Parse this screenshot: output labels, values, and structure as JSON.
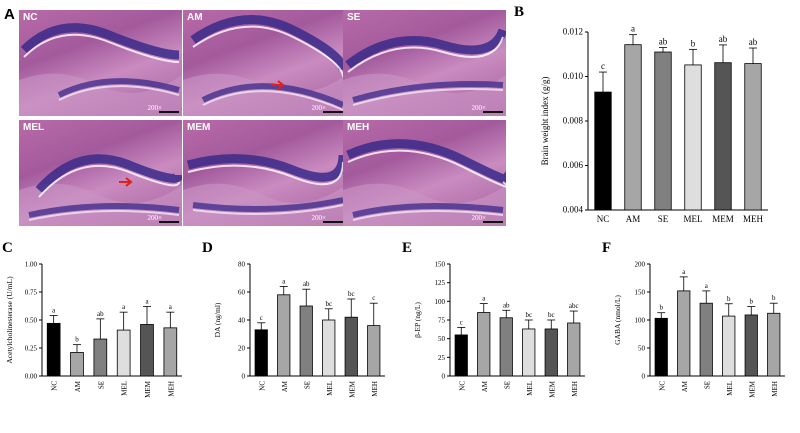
{
  "figure": {
    "panel_a_letter": "A",
    "micrographs": [
      {
        "label": "NC",
        "scale": "200×",
        "arrow": false
      },
      {
        "label": "AM",
        "scale": "200×",
        "arrow": true
      },
      {
        "label": "SE",
        "scale": "200×",
        "arrow": false
      },
      {
        "label": "MEL",
        "scale": "200×",
        "arrow": true
      },
      {
        "label": "MEM",
        "scale": "200×",
        "arrow": false
      },
      {
        "label": "MEH",
        "scale": "200×",
        "arrow": false
      }
    ]
  },
  "colors": {
    "NC": "#000000",
    "AM": "#a6a6a6",
    "SE": "#808080",
    "MEL": "#dedede",
    "MEM": "#555555",
    "MEH": "#a6a6a6",
    "arrow": "#e0201a",
    "tissue": "#a35a9c",
    "nuclei": "#3a2a8a"
  },
  "chart_data": [
    {
      "panel": "B",
      "type": "bar",
      "categories": [
        "NC",
        "AM",
        "SE",
        "MEL",
        "MEM",
        "MEH"
      ],
      "values": [
        0.0093,
        0.01143,
        0.0111,
        0.01052,
        0.01062,
        0.01058
      ],
      "errors": [
        0.0009,
        0.00045,
        0.0002,
        0.0007,
        0.0008,
        0.0007
      ],
      "letters": [
        "c",
        "a",
        "ab",
        "b",
        "ab",
        "ab"
      ],
      "ylabel": "Brain weight index (g/g)",
      "ylim": [
        0.004,
        0.012
      ],
      "yticks": [
        0.004,
        0.006,
        0.008,
        0.01,
        0.012
      ],
      "ytick_labels": [
        "0.004",
        "0.006",
        "0.008",
        "0.010",
        "0.012"
      ]
    },
    {
      "panel": "C",
      "type": "bar",
      "categories": [
        "NC",
        "AM",
        "SE",
        "MEL",
        "MEM",
        "MEH"
      ],
      "values": [
        0.47,
        0.21,
        0.33,
        0.41,
        0.46,
        0.43
      ],
      "errors": [
        0.07,
        0.07,
        0.18,
        0.16,
        0.16,
        0.14
      ],
      "letters": [
        "a",
        "b",
        "ab",
        "a",
        "a",
        "a"
      ],
      "ylabel": "Acetylcholinesterase (U/mL)",
      "ylim": [
        0,
        1.0
      ],
      "yticks": [
        0,
        0.25,
        0.5,
        0.75,
        1.0
      ],
      "ytick_labels": [
        "0.00",
        "0.25",
        "0.50",
        "0.75",
        "1.00"
      ]
    },
    {
      "panel": "D",
      "type": "bar",
      "categories": [
        "NC",
        "AM",
        "SE",
        "MEL",
        "MEM",
        "MEH"
      ],
      "values": [
        33,
        58,
        50,
        40,
        42,
        36
      ],
      "errors": [
        5,
        6,
        12,
        8,
        13,
        16
      ],
      "letters": [
        "c",
        "a",
        "ab",
        "bc",
        "bc",
        "c"
      ],
      "ylabel": "DA (ng/ml)",
      "ylim": [
        0,
        80
      ],
      "yticks": [
        0,
        20,
        40,
        60,
        80
      ],
      "ytick_labels": [
        "0",
        "20",
        "40",
        "60",
        "80"
      ]
    },
    {
      "panel": "E",
      "type": "bar",
      "categories": [
        "NC",
        "AM",
        "SE",
        "MEL",
        "MEM",
        "MEH"
      ],
      "values": [
        55,
        85,
        78,
        63,
        63,
        71
      ],
      "errors": [
        10,
        12,
        10,
        12,
        12,
        16
      ],
      "letters": [
        "c",
        "a",
        "ab",
        "bc",
        "bc",
        "abc"
      ],
      "ylabel": "β-EP (ng/L)",
      "ylim": [
        0,
        150
      ],
      "yticks": [
        0,
        25,
        50,
        75,
        100,
        125,
        150
      ],
      "ytick_labels": [
        "0",
        "25",
        "50",
        "75",
        "100",
        "125",
        "150"
      ]
    },
    {
      "panel": "F",
      "type": "bar",
      "categories": [
        "NC",
        "AM",
        "SE",
        "MEL",
        "MEM",
        "MEH"
      ],
      "values": [
        103,
        152,
        130,
        107,
        109,
        112
      ],
      "errors": [
        10,
        25,
        22,
        22,
        15,
        18
      ],
      "letters": [
        "b",
        "a",
        "a",
        "b",
        "b",
        "b"
      ],
      "ylabel": "GABA (nmol/L)",
      "ylim": [
        0,
        200
      ],
      "yticks": [
        0,
        50,
        100,
        150,
        200
      ],
      "ytick_labels": [
        "0",
        "50",
        "100",
        "150",
        "200"
      ]
    }
  ]
}
